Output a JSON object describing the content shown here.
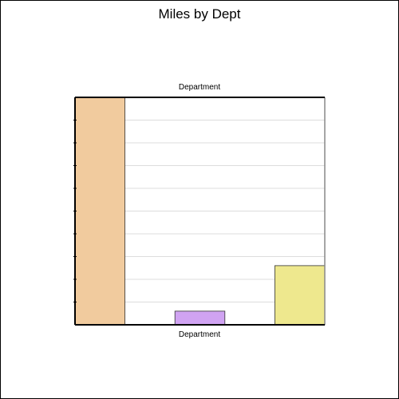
{
  "chart_data": {
    "type": "bar",
    "title": "Miles by Dept",
    "xlabel": "Department",
    "x2label": "Department",
    "ylabel": "",
    "categories": [
      "",
      "",
      "",
      "",
      ""
    ],
    "values": [
      10,
      0,
      0.6,
      0,
      2.6
    ],
    "colors": [
      "#f1cb9e",
      "#ffffff",
      "#d0a3f2",
      "#ffffff",
      "#eee88e"
    ],
    "ylim": [
      0,
      10
    ],
    "grid": true,
    "legend": "none"
  }
}
